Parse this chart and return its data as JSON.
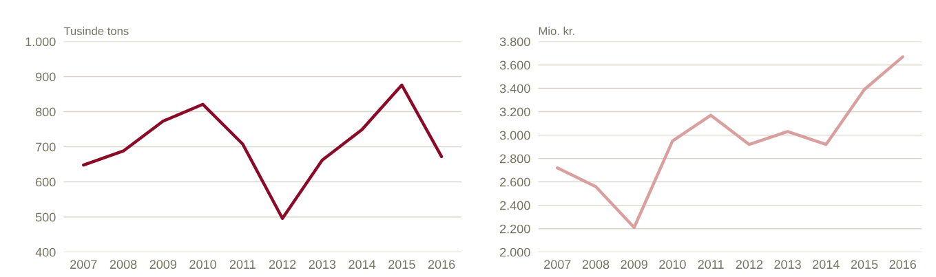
{
  "chart_data": [
    {
      "type": "line",
      "ylabel": "Tusinde tons",
      "categories": [
        "2007",
        "2008",
        "2009",
        "2010",
        "2011",
        "2012",
        "2013",
        "2014",
        "2015",
        "2016"
      ],
      "series": [
        {
          "color": "#8b0a27",
          "values": [
            648,
            688,
            773,
            821,
            708,
            496,
            662,
            749,
            876,
            672
          ]
        }
      ],
      "ylim": [
        400,
        1000
      ],
      "yticks": [
        400,
        500,
        600,
        700,
        800,
        900,
        {
          "value": 1000,
          "label": "1.000"
        }
      ],
      "grid": "y",
      "marker": "none",
      "line_style": "solid"
    },
    {
      "type": "line",
      "ylabel": "Mio. kr.",
      "categories": [
        "2007",
        "2008",
        "2009",
        "2010",
        "2011",
        "2012",
        "2013",
        "2014",
        "2015",
        "2016"
      ],
      "series": [
        {
          "color": "#d9a09f",
          "values": [
            2720,
            2560,
            2210,
            2950,
            3170,
            2920,
            3030,
            2920,
            3390,
            3670
          ]
        }
      ],
      "ylim": [
        2000,
        3800
      ],
      "yticks": [
        {
          "value": 2000,
          "label": "2.000"
        },
        {
          "value": 2200,
          "label": "2.200"
        },
        {
          "value": 2400,
          "label": "2.400"
        },
        {
          "value": 2600,
          "label": "2.600"
        },
        {
          "value": 2800,
          "label": "2.800"
        },
        {
          "value": 3000,
          "label": "3.000"
        },
        {
          "value": 3200,
          "label": "3.200"
        },
        {
          "value": 3400,
          "label": "3.400"
        },
        {
          "value": 3600,
          "label": "3.600"
        },
        {
          "value": 3800,
          "label": "3.800"
        }
      ],
      "grid": "y",
      "marker": "none",
      "line_style": "solid"
    }
  ]
}
